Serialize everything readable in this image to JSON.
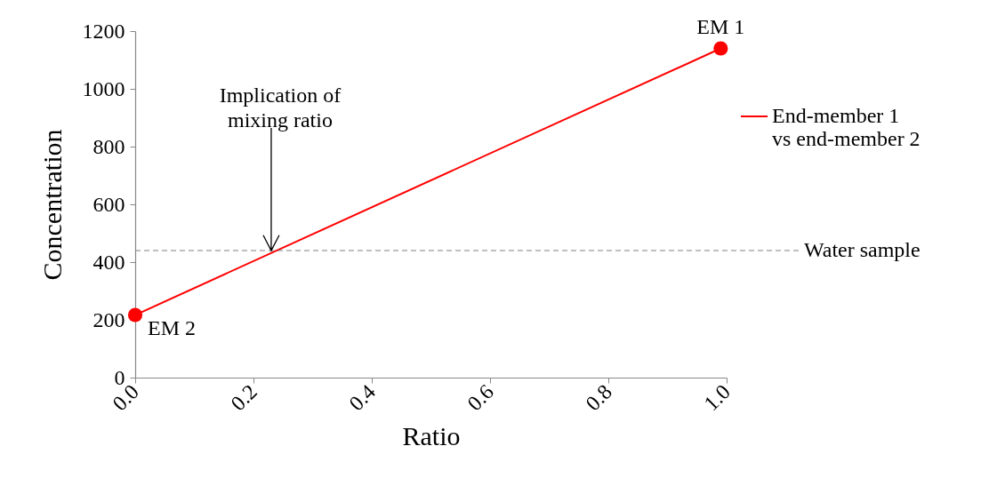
{
  "chart_data": {
    "type": "line",
    "xlabel": "Ratio",
    "ylabel": "Concentration",
    "x": [
      0,
      0.99
    ],
    "series": [
      {
        "name": "End-member 1 vs end-member 2",
        "color": "#ff0000",
        "values": [
          217,
          1140
        ]
      }
    ],
    "marker": "circle",
    "line_style": "solid",
    "xlim": [
      0,
      1
    ],
    "xticks": [
      {
        "value": 0,
        "label": "0.0"
      },
      {
        "value": 0.2,
        "label": "0.2"
      },
      {
        "value": 0.4,
        "label": "0.4"
      },
      {
        "value": 0.6,
        "label": "0.6"
      },
      {
        "value": 0.8,
        "label": "0.8"
      },
      {
        "value": 1,
        "label": "1.0"
      }
    ],
    "ylim": [
      0,
      1200
    ],
    "yticks": [
      0,
      200,
      400,
      600,
      800,
      {
        "value": 1000,
        "label": "1000"
      },
      {
        "value": 1200,
        "label": "1200"
      }
    ],
    "grid": false,
    "legend": "right",
    "ref_lines": [
      {
        "axis": "y",
        "value": 440,
        "label": "Water sample",
        "color": "#808080",
        "line_style": "dashed"
      }
    ],
    "annotations": [
      {
        "text": "EM 1",
        "x": 0.99,
        "y": 1140
      },
      {
        "text": "EM 2",
        "x": 0,
        "y": 217
      },
      {
        "text": "Implication of mixing ratio",
        "x": 0.23,
        "y": 440
      }
    ]
  }
}
